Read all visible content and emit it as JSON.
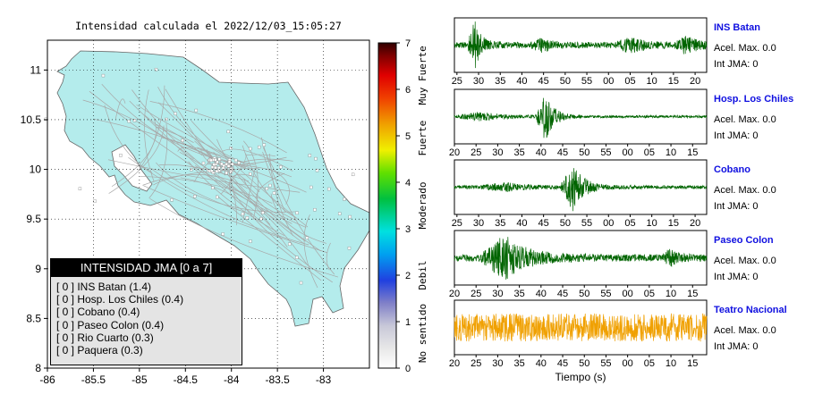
{
  "map": {
    "title": "Intensidad calculada el 2022/12/03_15:05:27",
    "xticks": [
      "-86",
      "-85.5",
      "-85",
      "-84.5",
      "-84",
      "-83.5",
      "-83"
    ],
    "yticks": [
      "11",
      "10.5",
      "10",
      "9.5",
      "9",
      "8.5",
      "8"
    ],
    "land_color": "#b4ecec"
  },
  "legend": {
    "title": "INTENSIDAD JMA [0 a 7]",
    "rows": [
      "[ 0 ]  INS Batan (1.4)",
      "[ 0 ]  Hosp. Los Chiles (0.4)",
      "[ 0 ]  Cobano (0.4)",
      "[ 0 ]  Paseo Colon (0.4)",
      "[ 0 ]  Rio Cuarto (0.3)",
      "[ 0 ]  Paquera (0.3)"
    ]
  },
  "colorbar": {
    "ticks": [
      "0",
      "1",
      "2",
      "3",
      "4",
      "5",
      "6",
      "7"
    ],
    "categories": [
      "No sentido",
      "Debil",
      "Moderado",
      "Fuerte",
      "Muy Fuerte"
    ]
  },
  "waveforms": {
    "xlabel": "Tiempo (s)",
    "stations": [
      {
        "name": "INS Batan",
        "acel": "Acel. Max. 0.0",
        "jma": "Int JMA: 0",
        "color": "#006400",
        "ticks": [
          "25",
          "30",
          "35",
          "40",
          "45",
          "50",
          "55",
          "00",
          "05",
          "10",
          "15",
          "20"
        ]
      },
      {
        "name": "Hosp. Los Chiles",
        "acel": "Acel. Max. 0.0",
        "jma": "Int JMA: 0",
        "color": "#006400",
        "ticks": [
          "20",
          "25",
          "30",
          "35",
          "40",
          "45",
          "50",
          "55",
          "00",
          "05",
          "10",
          "15"
        ]
      },
      {
        "name": "Cobano",
        "acel": "Acel. Max. 0.0",
        "jma": "Int JMA: 0",
        "color": "#006400",
        "ticks": [
          "25",
          "30",
          "35",
          "40",
          "45",
          "50",
          "55",
          "00",
          "05",
          "10",
          "15",
          "20"
        ]
      },
      {
        "name": "Paseo Colon",
        "acel": "Acel. Max. 0.0",
        "jma": "Int JMA: 0",
        "color": "#006400",
        "ticks": [
          "20",
          "25",
          "30",
          "35",
          "40",
          "45",
          "50",
          "55",
          "00",
          "05",
          "10",
          "15"
        ]
      },
      {
        "name": "Teatro Nacional",
        "acel": "Acel. Max. 0.0",
        "jma": "Int JMA: 0",
        "color": "#f0a000",
        "ticks": [
          "20",
          "25",
          "30",
          "35",
          "40",
          "45",
          "50",
          "55",
          "00",
          "05",
          "10",
          "15"
        ]
      }
    ]
  },
  "chart_data": [
    {
      "type": "map",
      "title": "Intensidad calculada el 2022/12/03_15:05:27",
      "xlim": [
        -86,
        -82.5
      ],
      "ylim": [
        8,
        11.3
      ],
      "stations": [
        {
          "name": "INS Batan",
          "intensity": 1.4,
          "jma_class": 0
        },
        {
          "name": "Hosp. Los Chiles",
          "intensity": 0.4,
          "jma_class": 0
        },
        {
          "name": "Cobano",
          "intensity": 0.4,
          "jma_class": 0
        },
        {
          "name": "Paseo Colon",
          "intensity": 0.4,
          "jma_class": 0
        },
        {
          "name": "Rio Cuarto",
          "intensity": 0.3,
          "jma_class": 0
        },
        {
          "name": "Paquera",
          "intensity": 0.3,
          "jma_class": 0
        }
      ],
      "legend": "bottom-left"
    },
    {
      "type": "line",
      "xlabel": "Tiempo (s)",
      "series": [
        {
          "name": "INS Batan",
          "acel_max": 0.0,
          "int_jma": 0
        },
        {
          "name": "Hosp. Los Chiles",
          "acel_max": 0.0,
          "int_jma": 0
        },
        {
          "name": "Cobano",
          "acel_max": 0.0,
          "int_jma": 0
        },
        {
          "name": "Paseo Colon",
          "acel_max": 0.0,
          "int_jma": 0
        },
        {
          "name": "Teatro Nacional",
          "acel_max": 0.0,
          "int_jma": 0
        }
      ]
    }
  ]
}
